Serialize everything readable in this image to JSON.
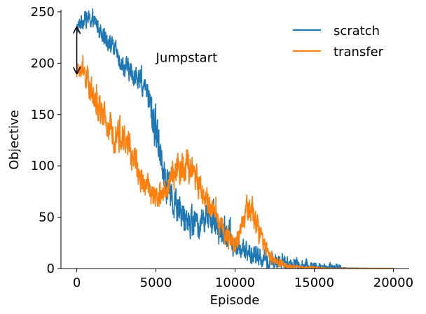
{
  "chart_data": {
    "type": "line",
    "title": "",
    "xlabel": "Episode",
    "ylabel": "Objective",
    "xlim": [
      -1000,
      21000
    ],
    "ylim": [
      0,
      252
    ],
    "xticks": [
      0,
      5000,
      10000,
      15000,
      20000
    ],
    "xtick_labels": [
      "0",
      "5000",
      "10000",
      "15000",
      "20000"
    ],
    "yticks": [
      0,
      50,
      100,
      150,
      200,
      250
    ],
    "ytick_labels": [
      "0",
      "50",
      "100",
      "150",
      "200",
      "250"
    ],
    "grid": false,
    "legend_position": "top-right",
    "series": [
      {
        "name": "scratch",
        "color": "#1f77b4",
        "x": [
          0,
          250,
          500,
          750,
          1000,
          1250,
          1500,
          1750,
          2000,
          2250,
          2500,
          2750,
          3000,
          3250,
          3500,
          3750,
          4000,
          4250,
          4500,
          4750,
          5000,
          5250,
          5500,
          5750,
          6000,
          6250,
          6500,
          6750,
          7000,
          7250,
          7500,
          7750,
          8000,
          8250,
          8500,
          8750,
          9000,
          9250,
          9500,
          9750,
          10000,
          10250,
          10500,
          10750,
          11000,
          11250,
          11500,
          11750,
          12000,
          12250,
          12500,
          12750,
          13000,
          13250,
          13500,
          13750,
          14000,
          14250,
          14500,
          14750,
          15000,
          15250,
          15500,
          15750,
          16000,
          16250,
          16500,
          17000,
          18000,
          19000,
          20000
        ],
        "y": [
          232,
          240,
          244,
          243,
          241,
          238,
          233,
          228,
          222,
          215,
          210,
          203,
          197,
          193,
          190,
          186,
          182,
          175,
          168,
          150,
          135,
          120,
          100,
          80,
          70,
          62,
          58,
          52,
          48,
          45,
          42,
          44,
          50,
          52,
          46,
          40,
          38,
          35,
          32,
          28,
          22,
          20,
          18,
          16,
          14,
          12,
          10,
          9,
          8,
          7,
          6,
          6,
          5,
          5,
          4,
          4,
          3,
          3,
          3,
          2,
          2,
          2,
          1,
          1,
          1,
          1,
          1,
          0.5,
          0.3,
          0.2,
          0.2
        ],
        "noise": [
          5,
          6,
          6,
          6,
          6,
          6,
          7,
          7,
          7,
          7,
          7,
          7,
          8,
          8,
          8,
          8,
          9,
          10,
          12,
          16,
          16,
          16,
          14,
          14,
          14,
          12,
          12,
          12,
          11,
          11,
          10,
          10,
          10,
          10,
          10,
          10,
          10,
          9,
          9,
          9,
          9,
          9,
          8,
          8,
          8,
          8,
          7,
          7,
          7,
          6,
          6,
          6,
          6,
          5,
          5,
          5,
          5,
          5,
          4,
          4,
          4,
          3,
          3,
          3,
          3,
          3,
          3,
          0,
          0,
          0,
          0
        ]
      },
      {
        "name": "transfer",
        "color": "#ff7f0e",
        "x": [
          0,
          250,
          500,
          750,
          1000,
          1250,
          1500,
          1750,
          2000,
          2250,
          2500,
          2750,
          3000,
          3250,
          3500,
          3750,
          4000,
          4250,
          4500,
          4750,
          5000,
          5250,
          5500,
          5750,
          6000,
          6250,
          6500,
          6750,
          7000,
          7250,
          7500,
          7750,
          8000,
          8250,
          8500,
          8750,
          9000,
          9250,
          9500,
          9750,
          10000,
          10250,
          10500,
          10750,
          11000,
          11250,
          11500,
          11750,
          12000,
          12250,
          12500,
          12750,
          13000,
          13250,
          13500,
          13750,
          14000,
          14250,
          14500,
          14750,
          15000,
          15250,
          15500,
          15750,
          16000,
          16500,
          17000,
          18000,
          19000,
          20000
        ],
        "y": [
          192,
          195,
          188,
          182,
          168,
          160,
          150,
          143,
          138,
          132,
          135,
          130,
          125,
          118,
          110,
          100,
          92,
          84,
          78,
          72,
          68,
          70,
          75,
          80,
          87,
          95,
          100,
          102,
          98,
          94,
          88,
          80,
          72,
          65,
          58,
          50,
          45,
          38,
          32,
          28,
          26,
          30,
          44,
          56,
          62,
          48,
          36,
          26,
          18,
          12,
          8,
          6,
          4,
          3,
          2,
          2,
          1.5,
          1.2,
          1,
          1,
          0.8,
          0.6,
          0.5,
          0.4,
          0.3,
          0.2,
          0.2,
          0.1,
          0.1,
          0.1
        ],
        "noise": [
          7,
          8,
          9,
          10,
          11,
          11,
          12,
          12,
          12,
          12,
          12,
          12,
          11,
          11,
          11,
          10,
          10,
          10,
          10,
          9,
          9,
          9,
          10,
          11,
          12,
          12,
          13,
          13,
          12,
          12,
          11,
          11,
          10,
          10,
          9,
          9,
          8,
          8,
          8,
          7,
          7,
          8,
          9,
          10,
          10,
          9,
          8,
          7,
          6,
          5,
          4,
          3,
          3,
          2,
          2,
          1,
          1,
          1,
          1,
          1,
          1,
          1,
          1,
          0,
          0,
          0,
          0,
          0,
          0,
          0
        ]
      }
    ],
    "annotations": [
      {
        "text": "Jumpstart",
        "x": 5000,
        "y": 200
      },
      {
        "type": "double-arrow",
        "x": 0,
        "y_from": 190,
        "y_to": 235
      }
    ]
  }
}
